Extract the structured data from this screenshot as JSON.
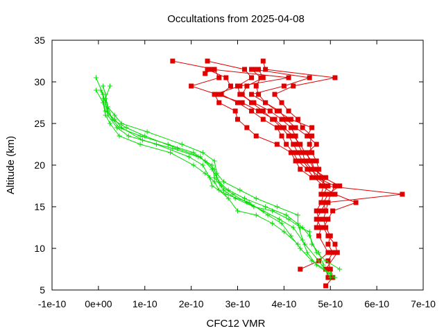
{
  "chart_data": {
    "type": "line",
    "title": "Occultations from 2025-04-08",
    "xlabel": "CFC12 VMR",
    "ylabel": "Altitude (km)",
    "xlim": [
      -1e-10,
      7e-10
    ],
    "ylim": [
      5,
      35
    ],
    "x_ticks": [
      {
        "value": -1e-10,
        "label": "-1e-10"
      },
      {
        "value": 0,
        "label": "0e+00"
      },
      {
        "value": 1e-10,
        "label": "1e-10"
      },
      {
        "value": 2e-10,
        "label": "2e-10"
      },
      {
        "value": 3e-10,
        "label": "3e-10"
      },
      {
        "value": 4e-10,
        "label": "4e-10"
      },
      {
        "value": 5e-10,
        "label": "5e-10"
      },
      {
        "value": 6e-10,
        "label": "6e-10"
      },
      {
        "value": 7e-10,
        "label": "7e-10"
      }
    ],
    "y_ticks": [
      {
        "value": 5,
        "label": "5"
      },
      {
        "value": 10,
        "label": "10"
      },
      {
        "value": 15,
        "label": "15"
      },
      {
        "value": 20,
        "label": "20"
      },
      {
        "value": 25,
        "label": "25"
      },
      {
        "value": 30,
        "label": "30"
      },
      {
        "value": 35,
        "label": "35"
      }
    ],
    "grid": false,
    "legend": "none",
    "colors": {
      "red_series": "#e00000",
      "green_series": "#00dd00",
      "axis": "#000000"
    },
    "series": [
      {
        "marker": "square",
        "color": "#e00000",
        "points": [
          [
            4.9e-10,
            5.5
          ],
          [
            5.05e-10,
            6.5
          ],
          [
            5e-10,
            7.5
          ],
          [
            4.95e-10,
            8.5
          ],
          [
            5.05e-10,
            9.5
          ],
          [
            4.95e-10,
            10.5
          ],
          [
            5e-10,
            11.5
          ],
          [
            4.9e-10,
            12.5
          ],
          [
            4.85e-10,
            13.5
          ],
          [
            4.9e-10,
            14.5
          ],
          [
            4.95e-10,
            15.5
          ],
          [
            5e-10,
            16.5
          ],
          [
            5.1e-10,
            17.5
          ],
          [
            4.7e-10,
            18.5
          ],
          [
            4.75e-10,
            19.5
          ],
          [
            4.7e-10,
            20.5
          ],
          [
            4.6e-10,
            21.5
          ],
          [
            4.55e-10,
            22.5
          ],
          [
            4.6e-10,
            23.5
          ],
          [
            4.4e-10,
            24.5
          ],
          [
            4.3e-10,
            25.5
          ],
          [
            4.1e-10,
            26.5
          ],
          [
            3.95e-10,
            27.5
          ],
          [
            3.8e-10,
            28.5
          ],
          [
            4.2e-10,
            29.5
          ],
          [
            5.1e-10,
            30.5
          ],
          [
            3.6e-10,
            31.5
          ],
          [
            3.55e-10,
            32.5
          ]
        ]
      },
      {
        "marker": "square",
        "color": "#e00000",
        "points": [
          [
            4.95e-10,
            6.5
          ],
          [
            4.9e-10,
            7.5
          ],
          [
            5.15e-10,
            9.5
          ],
          [
            5.1e-10,
            10.5
          ],
          [
            4.95e-10,
            11.5
          ],
          [
            4.85e-10,
            12.5
          ],
          [
            4.95e-10,
            13.5
          ],
          [
            5.05e-10,
            14.5
          ],
          [
            5.55e-10,
            15.5
          ],
          [
            5.1e-10,
            16.5
          ],
          [
            4.8e-10,
            17.5
          ],
          [
            4.9e-10,
            18.5
          ],
          [
            4.65e-10,
            19.5
          ],
          [
            4.55e-10,
            20.5
          ],
          [
            4.5e-10,
            21.5
          ],
          [
            4.7e-10,
            22.5
          ],
          [
            4.5e-10,
            23.5
          ],
          [
            4.25e-10,
            24.5
          ],
          [
            4.05e-10,
            25.5
          ],
          [
            3.9e-10,
            26.5
          ],
          [
            3.6e-10,
            27.5
          ],
          [
            3.45e-10,
            28.5
          ],
          [
            3.4e-10,
            29.5
          ],
          [
            3.5e-10,
            30.5
          ],
          [
            3.3e-10,
            31.5
          ]
        ]
      },
      {
        "marker": "square",
        "color": "#e00000",
        "points": [
          [
            4.35e-10,
            7.5
          ],
          [
            4.75e-10,
            8.5
          ],
          [
            4.95e-10,
            9.5
          ],
          [
            4.75e-10,
            11.5
          ],
          [
            4.8e-10,
            12.5
          ],
          [
            4.7e-10,
            13.5
          ],
          [
            4.8e-10,
            14.5
          ],
          [
            4.9e-10,
            15.5
          ],
          [
            6.55e-10,
            16.5
          ],
          [
            4.9e-10,
            17.5
          ],
          [
            4.8e-10,
            18.5
          ],
          [
            4.55e-10,
            19.5
          ],
          [
            4.4e-10,
            20.5
          ],
          [
            4.3e-10,
            21.5
          ],
          [
            4.2e-10,
            22.5
          ],
          [
            4.1e-10,
            23.5
          ],
          [
            3.95e-10,
            24.5
          ],
          [
            3.75e-10,
            25.5
          ],
          [
            3.55e-10,
            26.5
          ],
          [
            3.3e-10,
            27.5
          ],
          [
            3.1e-10,
            28.5
          ],
          [
            3.2e-10,
            29.5
          ],
          [
            3.55e-10,
            30.5
          ],
          [
            3.45e-10,
            31.5
          ]
        ]
      },
      {
        "marker": "square",
        "color": "#e00000",
        "points": [
          [
            4.7e-10,
            12.5
          ],
          [
            4.75e-10,
            13.5
          ],
          [
            4.7e-10,
            14.5
          ],
          [
            4.8e-10,
            15.5
          ],
          [
            4.85e-10,
            16.5
          ],
          [
            4.95e-10,
            17.5
          ],
          [
            4.7e-10,
            18.5
          ],
          [
            4.6e-10,
            19.5
          ],
          [
            4.45e-10,
            20.5
          ],
          [
            4.4e-10,
            21.5
          ],
          [
            4.3e-10,
            22.5
          ],
          [
            4.25e-10,
            23.5
          ],
          [
            4.15e-10,
            24.5
          ],
          [
            3.95e-10,
            25.5
          ],
          [
            3.7e-10,
            26.5
          ],
          [
            3.35e-10,
            27.5
          ],
          [
            3.05e-10,
            28.5
          ],
          [
            3e-10,
            29.5
          ],
          [
            3.3e-10,
            30.5
          ],
          [
            3.15e-10,
            31.5
          ],
          [
            2.35e-10,
            32.5
          ]
        ]
      },
      {
        "marker": "square",
        "color": "#e00000",
        "points": [
          [
            4.9e-10,
            14.5
          ],
          [
            4.85e-10,
            15.5
          ],
          [
            4.95e-10,
            16.5
          ],
          [
            5.2e-10,
            17.5
          ],
          [
            4.85e-10,
            18.5
          ],
          [
            4.65e-10,
            19.5
          ],
          [
            4.6e-10,
            20.5
          ],
          [
            4.45e-10,
            21.5
          ],
          [
            4.35e-10,
            22.5
          ],
          [
            4.2e-10,
            23.5
          ],
          [
            4e-10,
            24.5
          ],
          [
            3.8e-10,
            25.5
          ],
          [
            3.45e-10,
            26.5
          ],
          [
            3.1e-10,
            27.5
          ],
          [
            2.55e-10,
            28.5
          ],
          [
            2e-10,
            29.5
          ],
          [
            2.6e-10,
            30.5
          ],
          [
            2.5e-10,
            31.5
          ],
          [
            1.6e-10,
            32.5
          ]
        ]
      },
      {
        "marker": "square",
        "color": "#e00000",
        "points": [
          [
            4.8e-10,
            16.5
          ],
          [
            4.85e-10,
            17.5
          ],
          [
            4.65e-10,
            18.5
          ],
          [
            4.5e-10,
            19.5
          ],
          [
            4.3e-10,
            20.5
          ],
          [
            4.2e-10,
            21.5
          ],
          [
            4.05e-10,
            22.5
          ],
          [
            3.95e-10,
            23.5
          ],
          [
            3.85e-10,
            24.5
          ],
          [
            3.55e-10,
            25.5
          ],
          [
            3.3e-10,
            26.5
          ],
          [
            3e-10,
            27.5
          ],
          [
            2.65e-10,
            28.5
          ],
          [
            2.85e-10,
            29.5
          ],
          [
            2.75e-10,
            30.5
          ],
          [
            2.35e-10,
            31.5
          ]
        ]
      },
      {
        "marker": "square",
        "color": "#e00000",
        "points": [
          [
            4.6e-10,
            18.5
          ],
          [
            4.35e-10,
            19.5
          ],
          [
            4.25e-10,
            20.5
          ],
          [
            4.15e-10,
            21.5
          ],
          [
            3.85e-10,
            22.5
          ],
          [
            3.4e-10,
            23.5
          ],
          [
            3.2e-10,
            24.5
          ],
          [
            3e-10,
            25.5
          ],
          [
            2.95e-10,
            26.5
          ],
          [
            2.6e-10,
            27.5
          ],
          [
            2.5e-10,
            28.5
          ],
          [
            3.05e-10,
            29.5
          ],
          [
            4.1e-10,
            30.5
          ],
          [
            2.45e-10,
            31.5
          ],
          [
            2.3e-10,
            31.0
          ]
        ]
      },
      {
        "marker": "square",
        "color": "#e00000",
        "points": [
          [
            4.5e-10,
            23.5
          ],
          [
            4.6e-10,
            24.5
          ],
          [
            4.15e-10,
            25.5
          ],
          [
            3.85e-10,
            26.5
          ],
          [
            3.6e-10,
            27.5
          ],
          [
            3.3e-10,
            28.5
          ],
          [
            4e-10,
            29.5
          ],
          [
            4.55e-10,
            30.5
          ],
          [
            3.35e-10,
            31.5
          ]
        ]
      },
      {
        "marker": "cross",
        "color": "#00dd00",
        "points": [
          [
            5e-10,
            6.5
          ],
          [
            4.75e-10,
            8.5
          ],
          [
            4.45e-10,
            10.5
          ],
          [
            4.2e-10,
            12.5
          ],
          [
            3.9e-10,
            13.5
          ],
          [
            3.55e-10,
            14.5
          ],
          [
            3.2e-10,
            15.5
          ],
          [
            2.9e-10,
            16.5
          ],
          [
            2.65e-10,
            17.5
          ],
          [
            2.55e-10,
            18.5
          ],
          [
            2.5e-10,
            19.5
          ],
          [
            2.3e-10,
            20.5
          ],
          [
            2.05e-10,
            21.5
          ],
          [
            1.5e-10,
            22.5
          ],
          [
            9e-11,
            23.5
          ],
          [
            4.5e-11,
            24.5
          ],
          [
            3e-11,
            25.5
          ],
          [
            2e-11,
            26.5
          ],
          [
            1.5e-11,
            27.5
          ],
          [
            1e-11,
            28.5
          ],
          [
            -5e-12,
            30.5
          ]
        ]
      },
      {
        "marker": "cross",
        "color": "#00dd00",
        "points": [
          [
            5.2e-10,
            7.5
          ],
          [
            4.9e-10,
            8.5
          ],
          [
            4.7e-10,
            9.5
          ],
          [
            4.55e-10,
            11.5
          ],
          [
            4.4e-10,
            12.5
          ],
          [
            4.05e-10,
            14.0
          ],
          [
            3.6e-10,
            15.0
          ],
          [
            3.15e-10,
            16.0
          ],
          [
            2.8e-10,
            17.0
          ],
          [
            2.6e-10,
            18.0
          ],
          [
            2.45e-10,
            19.5
          ],
          [
            2.2e-10,
            21.0
          ],
          [
            1.7e-10,
            22.0
          ],
          [
            1e-10,
            23.5
          ],
          [
            6e-11,
            24.5
          ],
          [
            3e-11,
            25.5
          ],
          [
            2e-11,
            27.0
          ],
          [
            1.5e-11,
            28.0
          ],
          [
            2.5e-11,
            29.5
          ]
        ]
      },
      {
        "marker": "cross",
        "color": "#00dd00",
        "points": [
          [
            5e-10,
            7.0
          ],
          [
            4.6e-10,
            8.5
          ],
          [
            4.35e-10,
            10.0
          ],
          [
            4.15e-10,
            11.5
          ],
          [
            3.95e-10,
            13.0
          ],
          [
            3.65e-10,
            14.0
          ],
          [
            3.25e-10,
            15.5
          ],
          [
            2.75e-10,
            16.5
          ],
          [
            2.45e-10,
            17.5
          ],
          [
            2.4e-10,
            18.5
          ],
          [
            2.25e-10,
            20.0
          ],
          [
            1.95e-10,
            21.0
          ],
          [
            1.25e-10,
            22.5
          ],
          [
            6.5e-11,
            23.5
          ],
          [
            4e-11,
            24.5
          ],
          [
            2e-11,
            26.0
          ],
          [
            1.5e-11,
            27.5
          ],
          [
            5e-12,
            29.0
          ]
        ]
      },
      {
        "marker": "cross",
        "color": "#00dd00",
        "points": [
          [
            5.1e-10,
            6.5
          ],
          [
            4.7e-10,
            8.0
          ],
          [
            4.5e-10,
            9.5
          ],
          [
            4.4e-10,
            11.0
          ],
          [
            4.3e-10,
            13.0
          ],
          [
            4.3e-10,
            14.0
          ],
          [
            3.85e-10,
            15.0
          ],
          [
            3.4e-10,
            16.0
          ],
          [
            3.05e-10,
            17.0
          ],
          [
            2.7e-10,
            18.0
          ],
          [
            2.55e-10,
            19.0
          ],
          [
            2.5e-10,
            20.5
          ],
          [
            2.25e-10,
            21.5
          ],
          [
            1.8e-10,
            22.5
          ],
          [
            1.05e-10,
            24.0
          ],
          [
            5e-11,
            25.0
          ],
          [
            3.5e-11,
            26.0
          ],
          [
            2e-11,
            27.0
          ],
          [
            1.5e-11,
            28.5
          ],
          [
            1e-11,
            29.5
          ]
        ]
      },
      {
        "marker": "cross",
        "color": "#00dd00",
        "points": [
          [
            4.85e-10,
            8.0
          ],
          [
            4.75e-10,
            9.5
          ],
          [
            4.6e-10,
            10.5
          ],
          [
            4.55e-10,
            12.0
          ],
          [
            4.35e-10,
            12.5
          ],
          [
            4.1e-10,
            13.5
          ],
          [
            3.75e-10,
            14.5
          ],
          [
            3.35e-10,
            15.0
          ],
          [
            2.95e-10,
            16.0
          ],
          [
            2.7e-10,
            17.0
          ],
          [
            2.5e-10,
            18.5
          ],
          [
            2.45e-10,
            20.0
          ],
          [
            2.15e-10,
            21.0
          ],
          [
            1.6e-10,
            22.0
          ],
          [
            9.5e-11,
            23.0
          ],
          [
            5e-11,
            24.5
          ],
          [
            3.5e-11,
            25.5
          ],
          [
            1.5e-11,
            26.5
          ],
          [
            1e-11,
            28.0
          ]
        ]
      },
      {
        "marker": "cross",
        "color": "#00dd00",
        "points": [
          [
            4.3e-10,
            10.5
          ],
          [
            4e-10,
            12.0
          ],
          [
            3.75e-10,
            13.0
          ],
          [
            3.4e-10,
            14.0
          ],
          [
            3e-10,
            14.5
          ],
          [
            2.8e-10,
            16.0
          ],
          [
            2.6e-10,
            17.0
          ],
          [
            2.5e-10,
            18.0
          ],
          [
            2.3e-10,
            19.0
          ],
          [
            2.05e-10,
            20.0
          ],
          [
            1.55e-10,
            21.5
          ],
          [
            9e-11,
            22.5
          ],
          [
            4.5e-11,
            23.5
          ],
          [
            2.5e-11,
            25.0
          ],
          [
            1.5e-11,
            26.0
          ],
          [
            1e-11,
            27.5
          ],
          [
            -5e-12,
            29.0
          ]
        ]
      }
    ]
  }
}
